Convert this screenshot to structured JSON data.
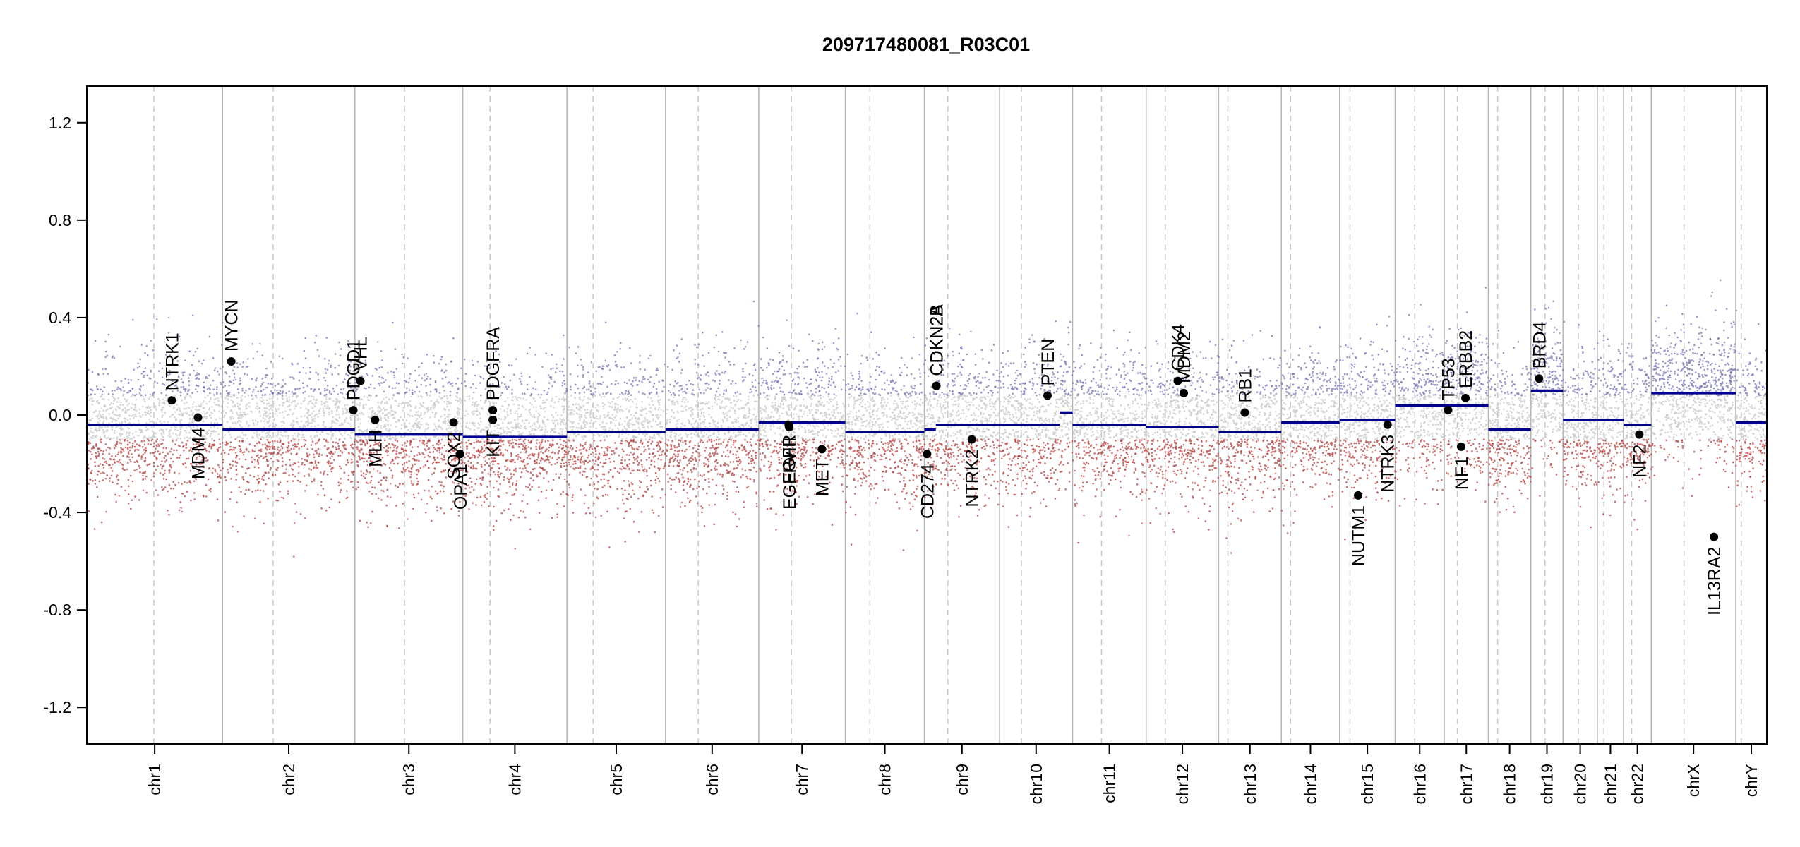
{
  "chart_data": {
    "type": "scatter",
    "title": "209717480081_R03C01",
    "xlabel": "",
    "ylabel": "",
    "ylim": [
      -1.35,
      1.35
    ],
    "y_ticks": [
      "1.2",
      "0.8",
      "0.4",
      "0.0",
      "-0.4",
      "-0.8",
      "-1.2"
    ],
    "grid": false,
    "colors": {
      "segment": "#00008b",
      "gain_probe": "#7878b4",
      "neutral_probe": "#c8c8c8",
      "loss_probe": "#b44646",
      "gene_point": "#000000",
      "chrom_boundary": "#b4b4b4",
      "centromere": "#c8c8c8"
    },
    "chromosomes": [
      {
        "name": "chr1",
        "length_mb": 249,
        "centromere_mb": 123,
        "segment": -0.04
      },
      {
        "name": "chr2",
        "length_mb": 243,
        "centromere_mb": 93,
        "segment": -0.06
      },
      {
        "name": "chr3",
        "length_mb": 198,
        "centromere_mb": 91,
        "segment": -0.08
      },
      {
        "name": "chr4",
        "length_mb": 191,
        "centromere_mb": 50,
        "segment": -0.09
      },
      {
        "name": "chr5",
        "length_mb": 181,
        "centromere_mb": 48,
        "segment": -0.07
      },
      {
        "name": "chr6",
        "length_mb": 171,
        "centromere_mb": 60,
        "segment": -0.06
      },
      {
        "name": "chr7",
        "length_mb": 159,
        "centromere_mb": 60,
        "segment": -0.03
      },
      {
        "name": "chr8",
        "length_mb": 145,
        "centromere_mb": 45,
        "segment": -0.07
      },
      {
        "name": "chr9",
        "length_mb": 138,
        "centromere_mb": 43,
        "segment": -0.04,
        "segments": [
          [
            0,
            21,
            -0.06
          ],
          [
            21,
            138,
            -0.04
          ]
        ]
      },
      {
        "name": "chr10",
        "length_mb": 134,
        "centromere_mb": 40,
        "segment": -0.04,
        "segments": [
          [
            0,
            110,
            -0.04
          ],
          [
            110,
            134,
            0.01
          ]
        ]
      },
      {
        "name": "chr11",
        "length_mb": 135,
        "centromere_mb": 53,
        "segment": -0.04
      },
      {
        "name": "chr12",
        "length_mb": 133,
        "centromere_mb": 35,
        "segment": -0.05
      },
      {
        "name": "chr13",
        "length_mb": 115,
        "centromere_mb": 17,
        "segment": -0.07
      },
      {
        "name": "chr14",
        "length_mb": 107,
        "centromere_mb": 17,
        "segment": -0.03
      },
      {
        "name": "chr15",
        "length_mb": 102,
        "centromere_mb": 19,
        "segment": -0.02
      },
      {
        "name": "chr16",
        "length_mb": 90,
        "centromere_mb": 36,
        "segment": 0.04
      },
      {
        "name": "chr17",
        "length_mb": 81,
        "centromere_mb": 24,
        "segment": 0.04
      },
      {
        "name": "chr18",
        "length_mb": 78,
        "centromere_mb": 17,
        "segment": -0.06
      },
      {
        "name": "chr19",
        "length_mb": 59,
        "centromere_mb": 26,
        "segment": 0.1
      },
      {
        "name": "chr20",
        "length_mb": 63,
        "centromere_mb": 28,
        "segment": -0.02
      },
      {
        "name": "chr21",
        "length_mb": 48,
        "centromere_mb": 12,
        "segment": -0.02
      },
      {
        "name": "chr22",
        "length_mb": 51,
        "centromere_mb": 15,
        "segment": -0.04
      },
      {
        "name": "chrX",
        "length_mb": 155,
        "centromere_mb": 60,
        "segment": 0.09
      },
      {
        "name": "chrY",
        "length_mb": 57,
        "centromere_mb": 10,
        "segment": -0.03
      }
    ],
    "genes": [
      {
        "name": "NTRK1",
        "chrom": "chr1",
        "pos_mb": 156,
        "value": 0.06,
        "label": "above"
      },
      {
        "name": "MDM4",
        "chrom": "chr1",
        "pos_mb": 204,
        "value": -0.01,
        "label": "below"
      },
      {
        "name": "MYCN",
        "chrom": "chr2",
        "pos_mb": 16,
        "value": 0.22,
        "label": "above"
      },
      {
        "name": "PDGD1",
        "chrom": "chr2",
        "pos_mb": 240,
        "value": 0.02,
        "label": "above"
      },
      {
        "name": "VHL",
        "chrom": "chr3",
        "pos_mb": 10,
        "value": 0.14,
        "label": "above"
      },
      {
        "name": "MLH",
        "chrom": "chr3",
        "pos_mb": 37,
        "value": -0.02,
        "label": "below"
      },
      {
        "name": "SOX2",
        "chrom": "chr3",
        "pos_mb": 181,
        "value": -0.03,
        "label": "below"
      },
      {
        "name": "OPA1",
        "chrom": "chr3",
        "pos_mb": 193,
        "value": -0.16,
        "label": "below"
      },
      {
        "name": "PDGFRA",
        "chrom": "chr4",
        "pos_mb": 55,
        "value": 0.02,
        "label": "above"
      },
      {
        "name": "KIT",
        "chrom": "chr4",
        "pos_mb": 55,
        "value": -0.02,
        "label": "below"
      },
      {
        "name": "EGFR",
        "chrom": "chr7",
        "pos_mb": 55,
        "value": -0.04,
        "label": "below"
      },
      {
        "name": "EGFRvIII",
        "chrom": "chr7",
        "pos_mb": 56,
        "value": -0.05,
        "label": "below"
      },
      {
        "name": "MET",
        "chrom": "chr7",
        "pos_mb": 116,
        "value": -0.14,
        "label": "below"
      },
      {
        "name": "CDKN2A",
        "chrom": "chr9",
        "pos_mb": 22,
        "value": 0.12,
        "label": "above"
      },
      {
        "name": "CDKN2B",
        "chrom": "chr9",
        "pos_mb": 22,
        "value": 0.12,
        "label": "above"
      },
      {
        "name": "CD274",
        "chrom": "chr9",
        "pos_mb": 5,
        "value": -0.16,
        "label": "below"
      },
      {
        "name": "NTRK2",
        "chrom": "chr9",
        "pos_mb": 87,
        "value": -0.1,
        "label": "below"
      },
      {
        "name": "PTEN",
        "chrom": "chr10",
        "pos_mb": 88,
        "value": 0.08,
        "label": "above"
      },
      {
        "name": "CDK4",
        "chrom": "chr12",
        "pos_mb": 58,
        "value": 0.14,
        "label": "above"
      },
      {
        "name": "MDM2",
        "chrom": "chr12",
        "pos_mb": 69,
        "value": 0.09,
        "label": "above"
      },
      {
        "name": "RB1",
        "chrom": "chr13",
        "pos_mb": 48,
        "value": 0.01,
        "label": "above"
      },
      {
        "name": "NUTM1",
        "chrom": "chr15",
        "pos_mb": 34,
        "value": -0.33,
        "label": "below"
      },
      {
        "name": "NTRK3",
        "chrom": "chr15",
        "pos_mb": 88,
        "value": -0.04,
        "label": "below"
      },
      {
        "name": "TP53",
        "chrom": "chr17",
        "pos_mb": 7,
        "value": 0.02,
        "label": "above"
      },
      {
        "name": "ERBB2",
        "chrom": "chr17",
        "pos_mb": 39,
        "value": 0.07,
        "label": "above"
      },
      {
        "name": "NF1",
        "chrom": "chr17",
        "pos_mb": 31,
        "value": -0.13,
        "label": "below"
      },
      {
        "name": "BRD4",
        "chrom": "chr19",
        "pos_mb": 15,
        "value": 0.15,
        "label": "above"
      },
      {
        "name": "NF2",
        "chrom": "chr22",
        "pos_mb": 29,
        "value": -0.08,
        "label": "below"
      },
      {
        "name": "IL13RA2",
        "chrom": "chrX",
        "pos_mb": 115,
        "value": -0.5,
        "label": "below"
      }
    ]
  }
}
